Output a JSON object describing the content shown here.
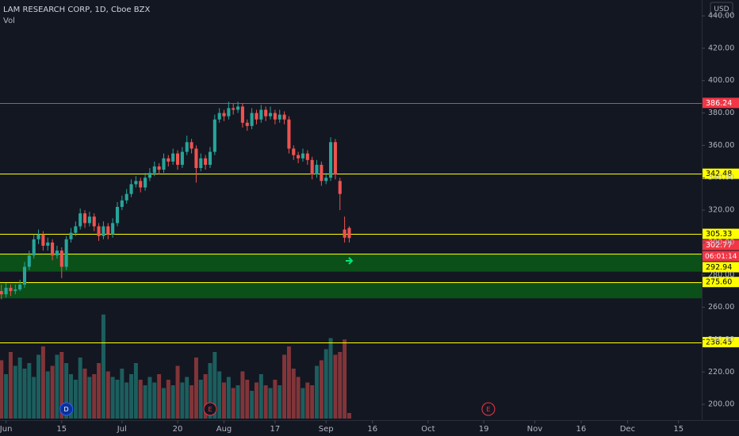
{
  "chart_data": {
    "type": "candlestick",
    "title": "LAM RESEARCH CORP, 1D, Cboe BZX",
    "subtitle": "Vol",
    "currency": "USD",
    "up_color": "#26a69a",
    "down_color": "#ef5350",
    "open": [
      270,
      268,
      272,
      270,
      271,
      274,
      285,
      292,
      302,
      305,
      298,
      300,
      292,
      295,
      285,
      302,
      306,
      310,
      318,
      312,
      316,
      310,
      304,
      310,
      305,
      312,
      322,
      326,
      330,
      336,
      338,
      334,
      340,
      343,
      347,
      345,
      352,
      350,
      355,
      348,
      356,
      362,
      358,
      346,
      352,
      348,
      356,
      376,
      380,
      378,
      383,
      382,
      384,
      374,
      372,
      380,
      376,
      382,
      378,
      380,
      376,
      379,
      376,
      358,
      354,
      352,
      355,
      351,
      342,
      348,
      338,
      340,
      362,
      338,
      308,
      309
    ],
    "high": [
      274,
      275,
      274,
      274,
      277,
      288,
      295,
      305,
      308,
      307,
      303,
      302,
      298,
      297,
      304,
      309,
      313,
      321,
      320,
      319,
      318,
      312,
      313,
      312,
      315,
      325,
      329,
      333,
      339,
      341,
      340,
      343,
      346,
      350,
      349,
      355,
      354,
      358,
      357,
      359,
      366,
      364,
      360,
      355,
      354,
      359,
      379,
      383,
      382,
      387,
      386,
      387,
      386,
      376,
      383,
      382,
      385,
      384,
      384,
      382,
      382,
      381,
      378,
      360,
      356,
      358,
      357,
      353,
      351,
      350,
      343,
      365,
      364,
      340,
      316,
      310
    ],
    "low": [
      265,
      266,
      267,
      268,
      270,
      272,
      283,
      290,
      299,
      295,
      295,
      289,
      290,
      278,
      283,
      300,
      304,
      308,
      309,
      310,
      307,
      301,
      302,
      302,
      303,
      310,
      320,
      324,
      328,
      334,
      331,
      332,
      338,
      341,
      342,
      343,
      347,
      348,
      345,
      346,
      354,
      355,
      337,
      344,
      345,
      346,
      354,
      374,
      375,
      376,
      379,
      380,
      371,
      369,
      370,
      373,
      374,
      375,
      376,
      373,
      374,
      373,
      355,
      351,
      349,
      350,
      348,
      339,
      340,
      335,
      336,
      338,
      339,
      320,
      300,
      300
    ],
    "close": [
      268,
      272,
      270,
      271,
      274,
      285,
      292,
      302,
      305,
      298,
      300,
      292,
      295,
      285,
      302,
      306,
      310,
      318,
      312,
      316,
      310,
      304,
      310,
      305,
      312,
      322,
      326,
      330,
      336,
      338,
      334,
      340,
      343,
      347,
      345,
      352,
      350,
      355,
      348,
      356,
      362,
      358,
      346,
      352,
      348,
      356,
      376,
      380,
      378,
      383,
      382,
      384,
      374,
      372,
      380,
      376,
      382,
      378,
      380,
      376,
      379,
      376,
      358,
      354,
      352,
      355,
      351,
      342,
      348,
      338,
      340,
      362,
      342,
      330,
      303,
      302.77
    ],
    "volume": [
      2.1,
      1.6,
      2.4,
      1.9,
      2.2,
      1.8,
      2.0,
      1.5,
      2.3,
      2.6,
      1.7,
      1.9,
      2.3,
      2.4,
      2.0,
      1.6,
      1.4,
      2.2,
      1.8,
      1.5,
      1.6,
      2.0,
      3.75,
      1.7,
      1.5,
      1.4,
      1.8,
      1.3,
      1.6,
      2.0,
      1.4,
      1.2,
      1.5,
      1.3,
      1.6,
      1.1,
      1.4,
      1.2,
      1.9,
      1.3,
      1.5,
      1.2,
      2.2,
      1.4,
      1.6,
      2.0,
      2.4,
      1.7,
      1.3,
      1.5,
      1.1,
      1.2,
      1.7,
      1.4,
      1.0,
      1.3,
      1.6,
      1.2,
      1.1,
      1.4,
      1.2,
      2.3,
      2.6,
      1.8,
      1.5,
      1.1,
      1.3,
      1.2,
      1.9,
      2.1,
      2.5,
      2.9,
      2.3,
      2.4,
      2.85,
      0.2
    ],
    "volume_lim": [
      0,
      4
    ],
    "xlim": [
      -0.3,
      151
    ],
    "xticks": [
      {
        "value": 1,
        "label": "Jun"
      },
      {
        "value": 13,
        "label": "15"
      },
      {
        "value": 26,
        "label": "Jul"
      },
      {
        "value": 38,
        "label": "20"
      },
      {
        "value": 48,
        "label": "Aug"
      },
      {
        "value": 59,
        "label": "17"
      },
      {
        "value": 70,
        "label": "Sep"
      },
      {
        "value": 80,
        "label": "16"
      },
      {
        "value": 92,
        "label": "Oct"
      },
      {
        "value": 104,
        "label": "19"
      },
      {
        "value": 115,
        "label": "Nov"
      },
      {
        "value": 125,
        "label": "16"
      },
      {
        "value": 135,
        "label": "Dec"
      },
      {
        "value": 146,
        "label": "15"
      }
    ],
    "ylim": [
      190.26,
      449.81
    ],
    "yticks": [
      {
        "value": 200,
        "label": "200.00"
      },
      {
        "value": 220,
        "label": "220.00"
      },
      {
        "value": 240,
        "label": "240.00"
      },
      {
        "value": 260,
        "label": "260.00"
      },
      {
        "value": 280,
        "label": "280.00"
      },
      {
        "value": 300,
        "label": "300.00"
      },
      {
        "value": 320,
        "label": "320.00"
      },
      {
        "value": 340,
        "label": "340.00"
      },
      {
        "value": 360,
        "label": "360.00"
      },
      {
        "value": 380,
        "label": "380.00"
      },
      {
        "value": 400,
        "label": "400.00"
      },
      {
        "value": 420,
        "label": "420.00"
      },
      {
        "value": 440,
        "label": "440.00"
      }
    ],
    "grid": false,
    "levels": [
      {
        "value": 386.24,
        "color": "#f23645"
      },
      {
        "value": 342.48,
        "color": "#ffff00"
      },
      {
        "value": 305.33,
        "color": "#ffff00"
      },
      {
        "value": 292.94,
        "color": "#ffff00"
      },
      {
        "value": {
          "value": 275.6,
          "label": "275.60"
        },
        "color": "#ffff00"
      },
      {
        "value": 238.45,
        "color": "#ffff00"
      }
    ],
    "zones": [
      {
        "low": 282,
        "high": 292.94,
        "color": "#0b5b16"
      },
      {
        "low": 265.5,
        "high": 275.6,
        "color": "#0b5b16"
      }
    ],
    "countdown": "06:01:14",
    "events": [
      {
        "label": "D",
        "x": 14,
        "color": "#2962ff"
      },
      {
        "label": "E",
        "x": 45,
        "color": "#f23645"
      },
      {
        "label": "E",
        "x": 105,
        "color": "#f23645"
      }
    ]
  }
}
